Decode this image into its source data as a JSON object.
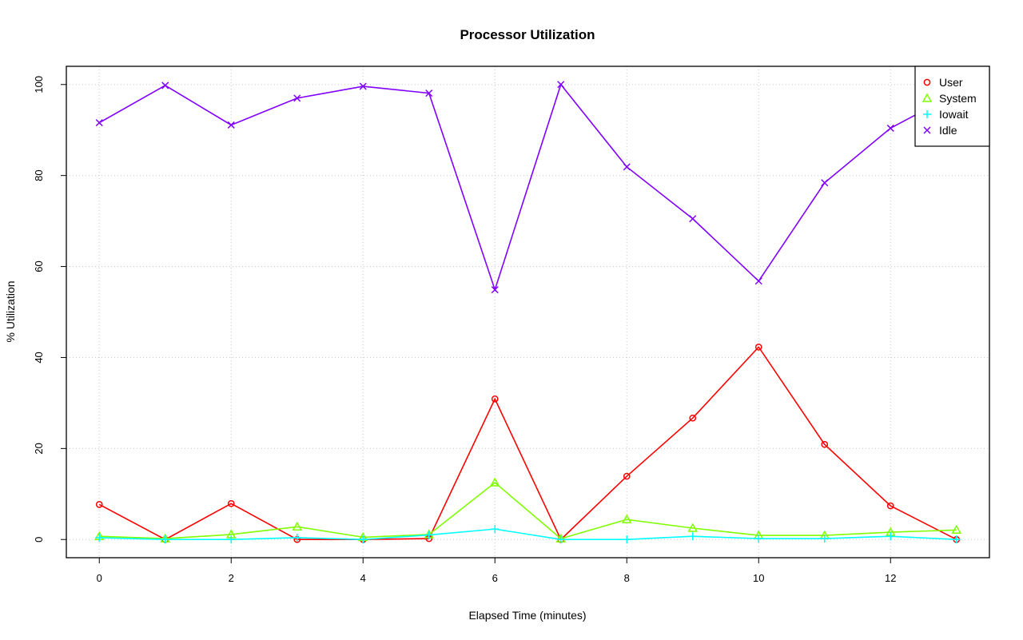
{
  "chart_data": {
    "type": "line",
    "title": "Processor Utilization",
    "xlabel": "Elapsed Time (minutes)",
    "ylabel": "% Utilization",
    "xlim": [
      -0.5,
      13.5
    ],
    "ylim": [
      -4,
      104
    ],
    "xticks": [
      0,
      2,
      4,
      6,
      8,
      10,
      12
    ],
    "yticks": [
      0,
      20,
      40,
      60,
      80,
      100
    ],
    "grid": true,
    "legend_position": "top-right",
    "x": [
      0,
      1,
      2,
      3,
      4,
      5,
      6,
      7,
      8,
      9,
      10,
      11,
      12,
      13
    ],
    "series": [
      {
        "name": "User",
        "color": "#FF0000",
        "marker": "circle",
        "values": [
          7.7,
          0,
          7.9,
          0,
          0,
          0.2,
          30.9,
          0,
          13.9,
          26.7,
          42.3,
          20.9,
          7.4,
          0
        ]
      },
      {
        "name": "System",
        "color": "#80FF00",
        "marker": "triangle",
        "values": [
          0.7,
          0.2,
          1.1,
          2.8,
          0.5,
          1.1,
          12.5,
          0.2,
          4.4,
          2.5,
          0.9,
          0.9,
          1.6,
          2.1
        ]
      },
      {
        "name": "Iowait",
        "color": "#00FFFF",
        "marker": "plus",
        "values": [
          0.4,
          0,
          0,
          0.4,
          0,
          1.0,
          2.3,
          0,
          0,
          0.7,
          0.2,
          0.2,
          0.7,
          0
        ]
      },
      {
        "name": "Idle",
        "color": "#8000FF",
        "marker": "cross",
        "values": [
          91.6,
          99.8,
          91.1,
          97.0,
          99.6,
          98.1,
          54.9,
          100,
          81.9,
          70.5,
          56.8,
          78.4,
          90.4,
          98.1
        ]
      }
    ]
  }
}
